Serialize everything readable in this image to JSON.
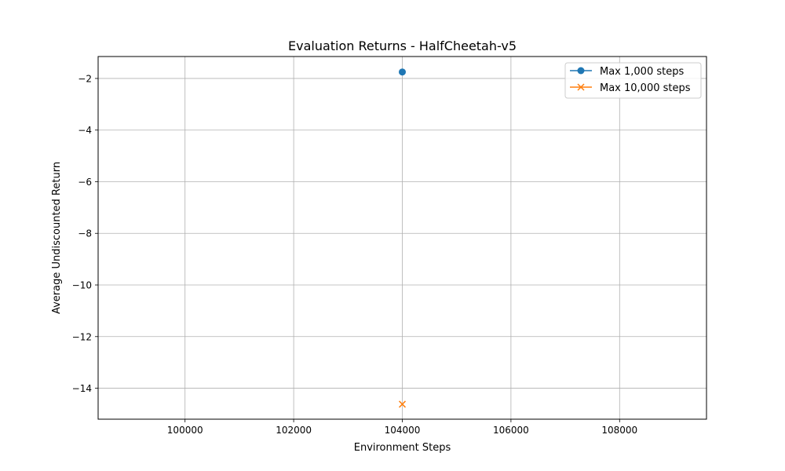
{
  "chart_data": {
    "type": "line",
    "title": "Evaluation Returns - HalfCheetah-v5",
    "xlabel": "Environment Steps",
    "ylabel": "Average Undiscounted Return",
    "xlim": [
      98400,
      109600
    ],
    "ylim": [
      -15.2,
      -1.15
    ],
    "x_ticks": [
      100000,
      102000,
      104000,
      106000,
      108000
    ],
    "y_ticks": [
      -2,
      -4,
      -6,
      -8,
      -10,
      -12,
      -14
    ],
    "x_tick_labels": [
      "100000",
      "102000",
      "104000",
      "106000",
      "108000"
    ],
    "y_tick_labels": [
      "−2",
      "−4",
      "−6",
      "−8",
      "−10",
      "−12",
      "−14"
    ],
    "grid": true,
    "legend_position": "top-right",
    "series": [
      {
        "name": "Max 1,000 steps",
        "color": "#1f77b4",
        "marker": "circle",
        "x": [
          104000
        ],
        "y": [
          -1.75
        ]
      },
      {
        "name": "Max 10,000 steps",
        "color": "#ff7f0e",
        "marker": "x",
        "x": [
          104000
        ],
        "y": [
          -14.62
        ]
      }
    ]
  }
}
